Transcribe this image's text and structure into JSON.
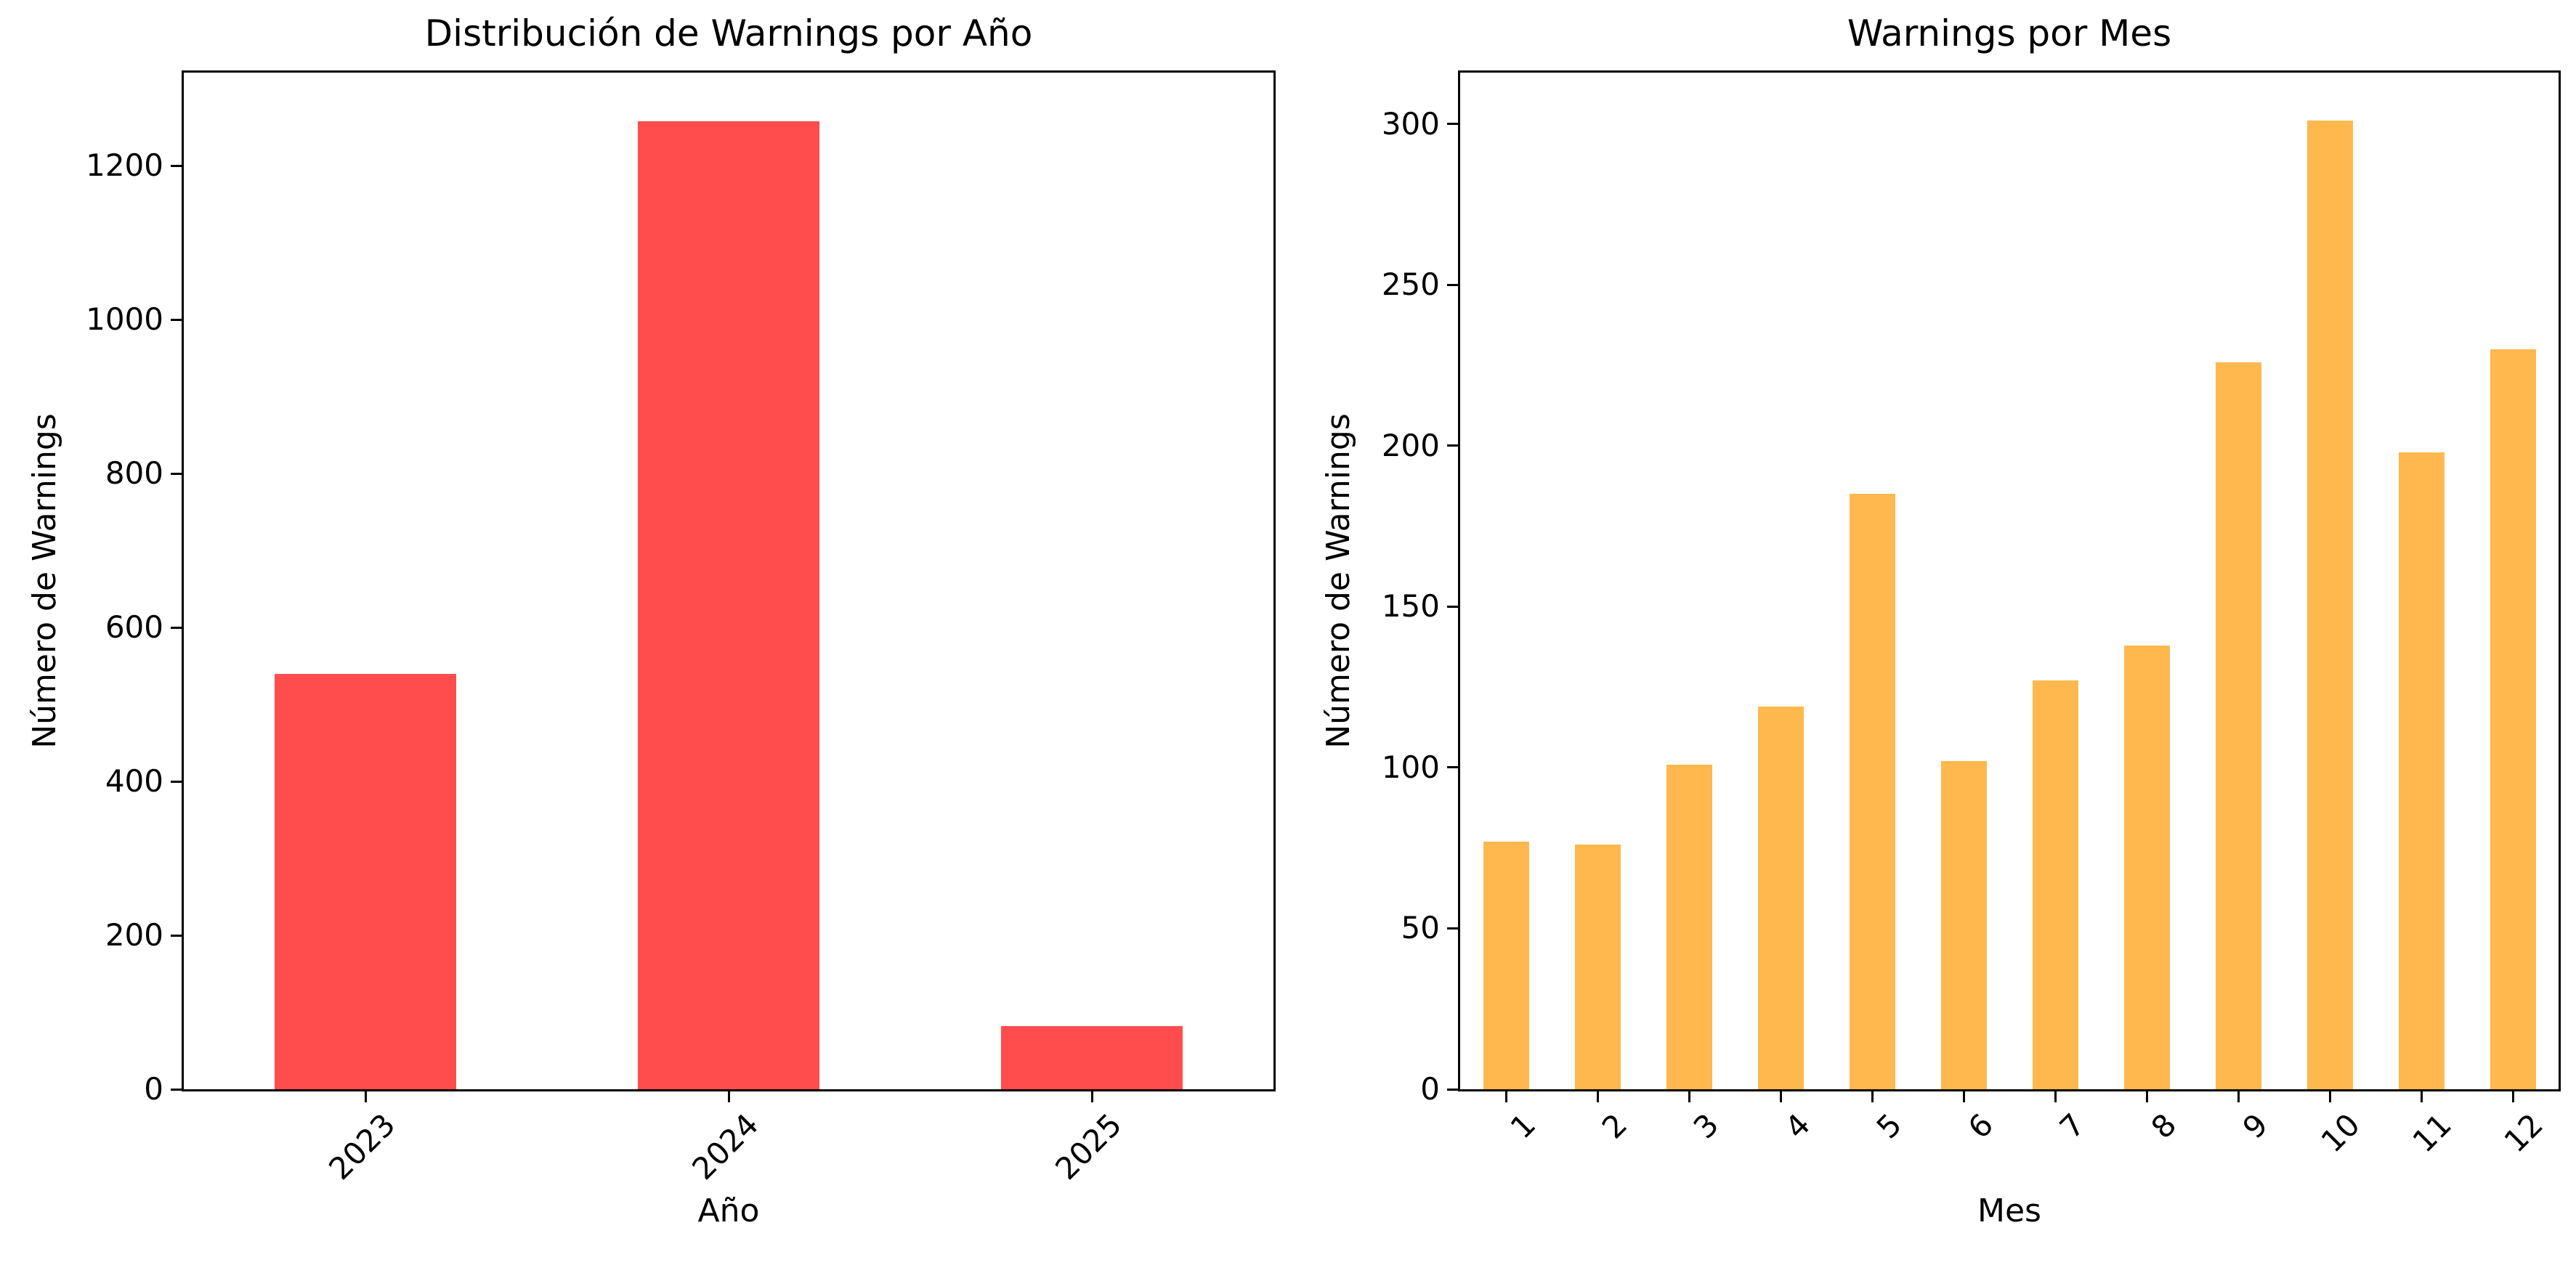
{
  "figure": {
    "background": "#ffffff"
  },
  "chart_data": [
    {
      "type": "bar",
      "title": "Distribución de Warnings por Año",
      "xlabel": "Año",
      "ylabel": "Número de Warnings",
      "categories": [
        "2023",
        "2024",
        "2025"
      ],
      "values": [
        540,
        1258,
        82
      ],
      "bar_color": "#ff4d4d",
      "ylim": [
        0,
        1321
      ],
      "yticks": [
        0,
        200,
        400,
        600,
        800,
        1000,
        1200
      ],
      "xtick_rotation": 45,
      "grid": false,
      "legend_position": "none"
    },
    {
      "type": "bar",
      "title": "Warnings por Mes",
      "xlabel": "Mes",
      "ylabel": "Número de Warnings",
      "categories": [
        "1",
        "2",
        "3",
        "4",
        "5",
        "6",
        "7",
        "8",
        "9",
        "10",
        "11",
        "12"
      ],
      "values": [
        77,
        76,
        101,
        119,
        185,
        102,
        127,
        138,
        226,
        301,
        198,
        230
      ],
      "bar_color": "#ffb84d",
      "ylim": [
        0,
        316
      ],
      "yticks": [
        0,
        50,
        100,
        150,
        200,
        250,
        300
      ],
      "xtick_rotation": 45,
      "grid": false,
      "legend_position": "none"
    }
  ]
}
